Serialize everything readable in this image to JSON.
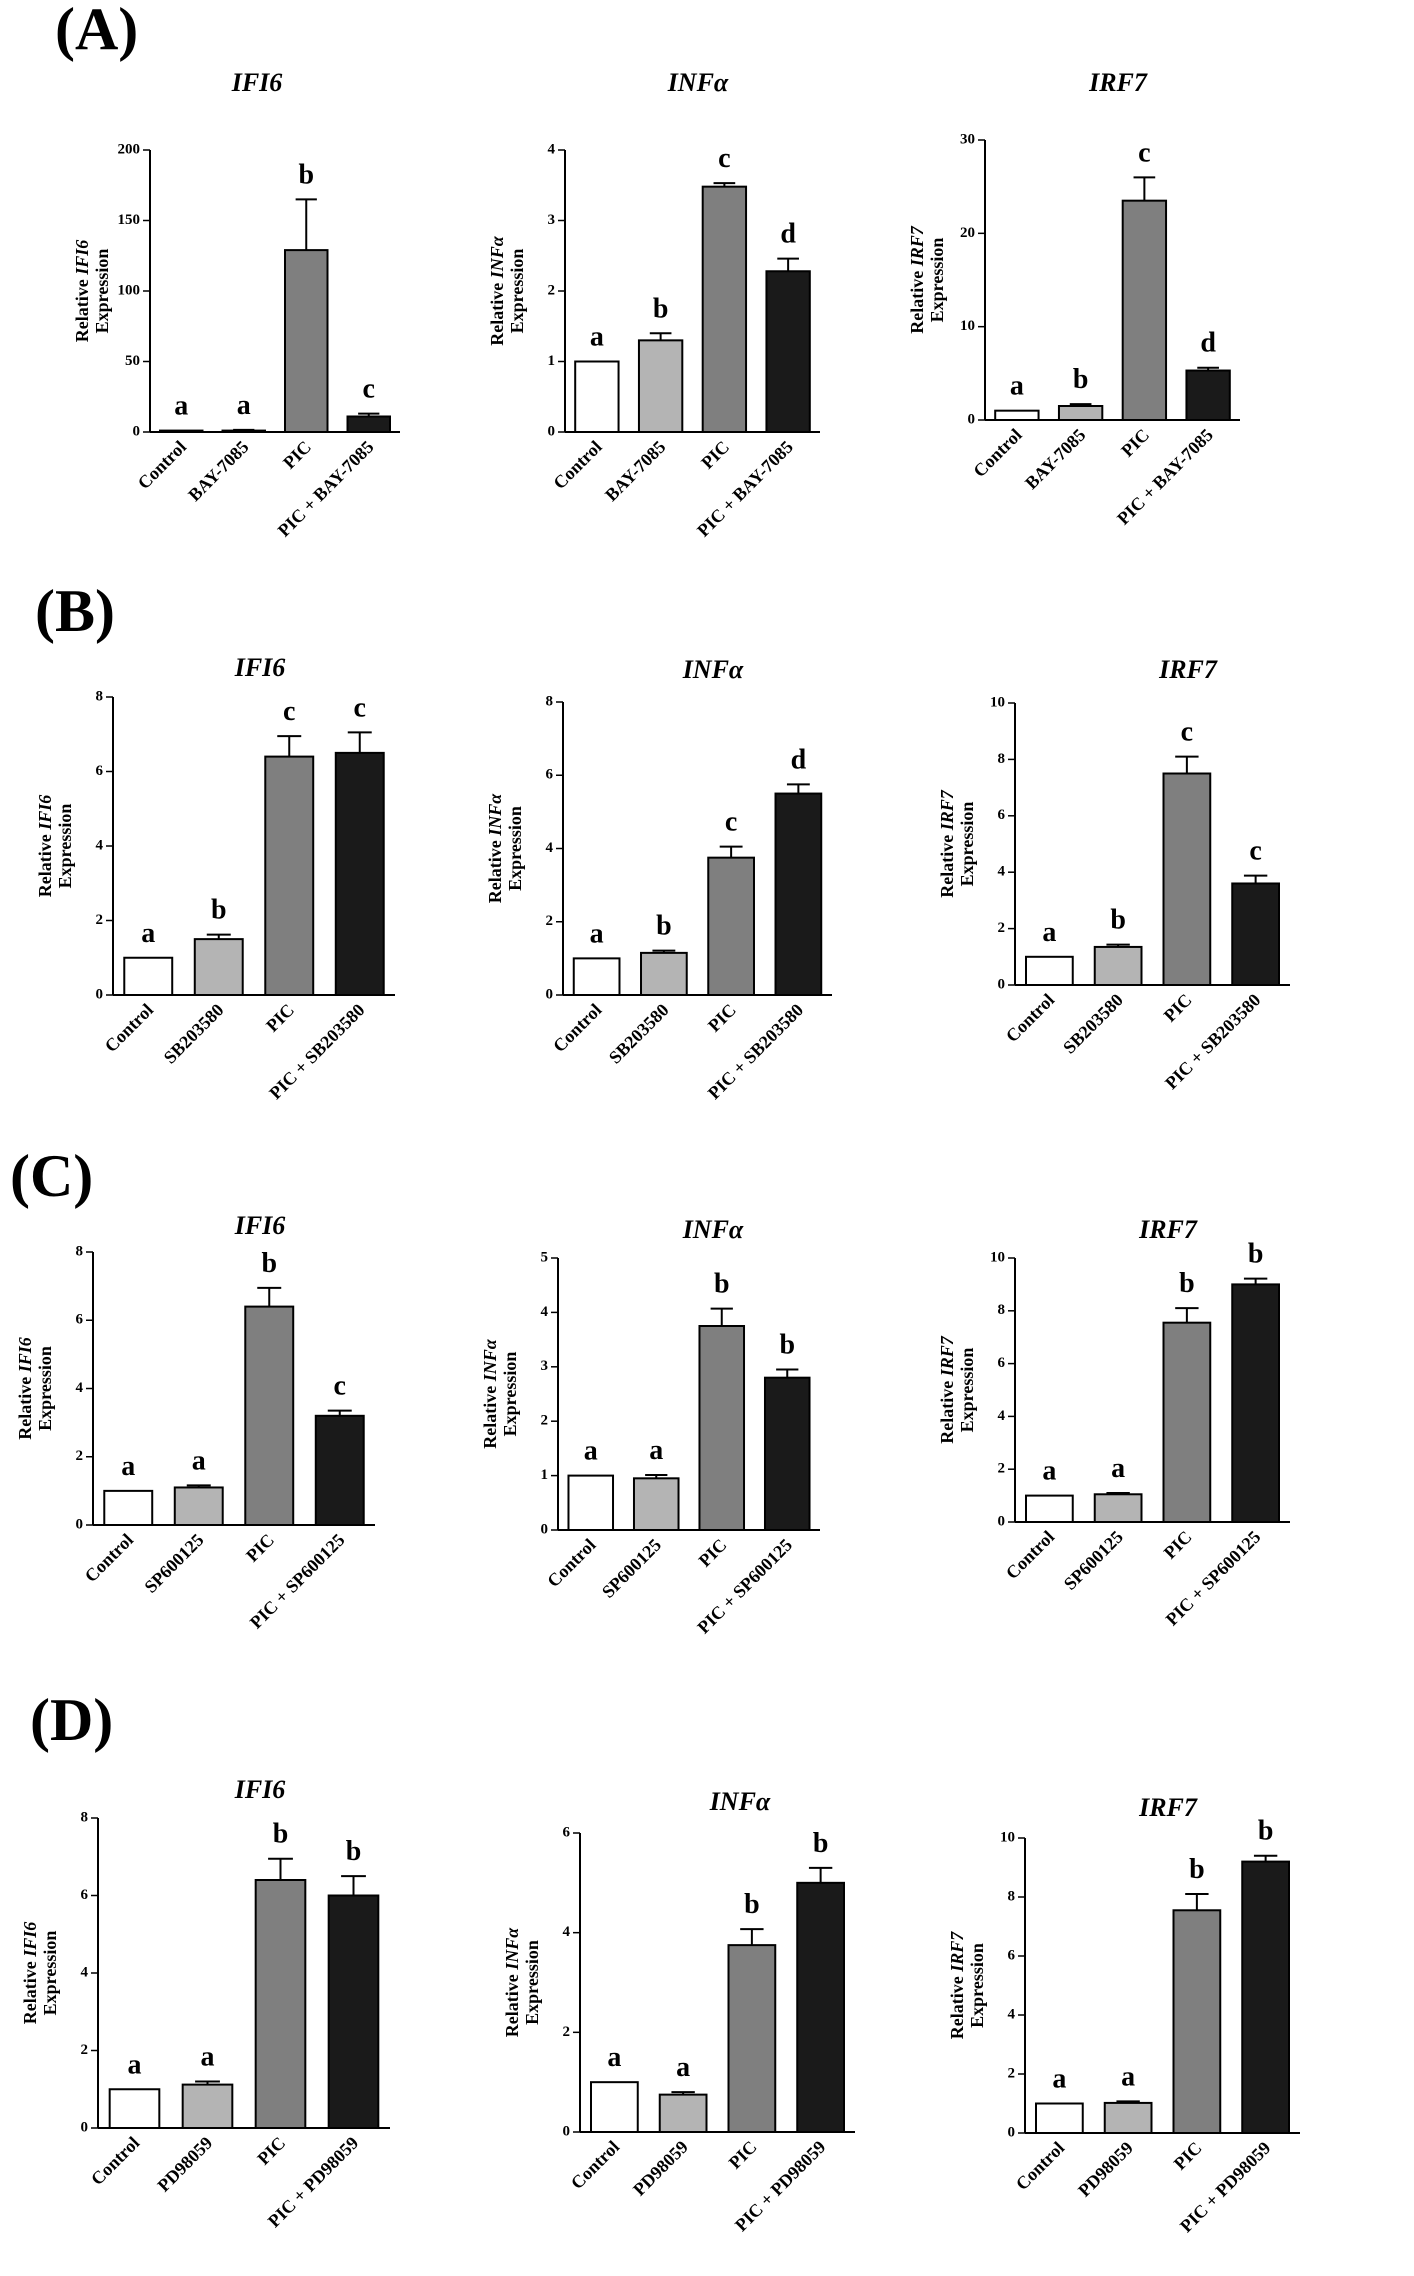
{
  "panels": [
    {
      "letter": "(A)",
      "charts": [
        {
          "type": "bar",
          "title": "IFI6",
          "ylabel_prefix": "Relative ",
          "ylabel_gene": "IFI6",
          "ylabel_suffix": "Expression",
          "categories": [
            "Control",
            "BAY-7085",
            "PIC",
            "PIC + BAY-7085"
          ],
          "values": [
            1,
            1,
            129,
            11
          ],
          "errors": [
            0,
            0.5,
            36,
            2
          ],
          "letters": [
            "a",
            "a",
            "b",
            "c"
          ],
          "yticks": [
            0,
            50,
            100,
            150,
            200
          ],
          "ylim": [
            0,
            200
          ]
        },
        {
          "type": "bar",
          "title": "INFα",
          "ylabel_prefix": "Relative ",
          "ylabel_gene": "INFα",
          "ylabel_suffix": "Expression",
          "categories": [
            "Control",
            "BAY-7085",
            "PIC",
            "PIC + BAY-7085"
          ],
          "values": [
            1,
            1.3,
            3.48,
            2.28
          ],
          "errors": [
            0,
            0.1,
            0.05,
            0.18
          ],
          "letters": [
            "a",
            "b",
            "c",
            "d"
          ],
          "yticks": [
            0,
            1,
            2,
            3,
            4
          ],
          "ylim": [
            0,
            4
          ]
        },
        {
          "type": "bar",
          "title": "IRF7",
          "ylabel_prefix": "Relative ",
          "ylabel_gene": "IRF7",
          "ylabel_suffix": "Expression",
          "categories": [
            "Control",
            "BAY-7085",
            "PIC",
            "PIC + BAY-7085"
          ],
          "values": [
            1,
            1.5,
            23.5,
            5.3
          ],
          "errors": [
            0,
            0.2,
            2.5,
            0.3
          ],
          "letters": [
            "a",
            "b",
            "c",
            "d"
          ],
          "yticks": [
            0,
            10,
            20,
            30
          ],
          "ylim": [
            0,
            30
          ]
        }
      ]
    },
    {
      "letter": "(B)",
      "charts": [
        {
          "type": "bar",
          "title": "IFI6",
          "ylabel_prefix": "Relative ",
          "ylabel_gene": "IFI6",
          "ylabel_suffix": "Expression",
          "categories": [
            "Control",
            "SB203580",
            "PIC",
            "PIC + SB203580"
          ],
          "values": [
            1,
            1.5,
            6.4,
            6.5
          ],
          "errors": [
            0,
            0.12,
            0.55,
            0.55
          ],
          "letters": [
            "a",
            "b",
            "c",
            "c"
          ],
          "yticks": [
            0,
            2,
            4,
            6,
            8
          ],
          "ylim": [
            0,
            8
          ]
        },
        {
          "type": "bar",
          "title": "INFα",
          "ylabel_prefix": "Relative ",
          "ylabel_gene": "INFα",
          "ylabel_suffix": "Expression",
          "categories": [
            "Control",
            "SB203580",
            "PIC",
            "PIC + SB203580"
          ],
          "values": [
            1,
            1.15,
            3.75,
            5.5
          ],
          "errors": [
            0,
            0.06,
            0.3,
            0.25
          ],
          "letters": [
            "a",
            "b",
            "c",
            "d"
          ],
          "yticks": [
            0,
            2,
            4,
            6,
            8
          ],
          "ylim": [
            0,
            8
          ]
        },
        {
          "type": "bar",
          "title": "IRF7",
          "ylabel_prefix": "Relative ",
          "ylabel_gene": "IRF7",
          "ylabel_suffix": "Expression",
          "categories": [
            "Control",
            "SB203580",
            "PIC",
            "PIC + SB203580"
          ],
          "values": [
            1,
            1.35,
            7.5,
            3.6
          ],
          "errors": [
            0,
            0.08,
            0.6,
            0.28
          ],
          "letters": [
            "a",
            "b",
            "c",
            "c"
          ],
          "yticks": [
            0,
            2,
            4,
            6,
            8,
            10
          ],
          "ylim": [
            0,
            10
          ]
        }
      ]
    },
    {
      "letter": "(C)",
      "charts": [
        {
          "type": "bar",
          "title": "IFI6",
          "ylabel_prefix": "Relative ",
          "ylabel_gene": "IFI6",
          "ylabel_suffix": "Expression",
          "categories": [
            "Control",
            "SP600125",
            "PIC",
            "PIC + SP600125"
          ],
          "values": [
            1,
            1.1,
            6.4,
            3.2
          ],
          "errors": [
            0,
            0.06,
            0.55,
            0.15
          ],
          "letters": [
            "a",
            "a",
            "b",
            "c"
          ],
          "yticks": [
            0,
            2,
            4,
            6,
            8
          ],
          "ylim": [
            0,
            8
          ]
        },
        {
          "type": "bar",
          "title": "INFα",
          "ylabel_prefix": "Relative ",
          "ylabel_gene": "INFα",
          "ylabel_suffix": "Expression",
          "categories": [
            "Control",
            "SP600125",
            "PIC",
            "PIC + SP600125"
          ],
          "values": [
            1,
            0.95,
            3.75,
            2.8
          ],
          "errors": [
            0,
            0.06,
            0.32,
            0.15
          ],
          "letters": [
            "a",
            "a",
            "b",
            "b"
          ],
          "yticks": [
            0,
            1,
            2,
            3,
            4,
            5
          ],
          "ylim": [
            0,
            5
          ]
        },
        {
          "type": "bar",
          "title": "IRF7",
          "ylabel_prefix": "Relative ",
          "ylabel_gene": "IRF7",
          "ylabel_suffix": "Expression",
          "categories": [
            "Control",
            "SP600125",
            "PIC",
            "PIC + SP600125"
          ],
          "values": [
            1,
            1.05,
            7.55,
            9.0
          ],
          "errors": [
            0,
            0.05,
            0.55,
            0.22
          ],
          "letters": [
            "a",
            "a",
            "b",
            "b"
          ],
          "yticks": [
            0,
            2,
            4,
            6,
            8,
            10
          ],
          "ylim": [
            0,
            10
          ]
        }
      ]
    },
    {
      "letter": "(D)",
      "charts": [
        {
          "type": "bar",
          "title": "IFI6",
          "ylabel_prefix": "Relative ",
          "ylabel_gene": "IFI6",
          "ylabel_suffix": "Expression",
          "categories": [
            "Control",
            "PD98059",
            "PIC",
            "PIC + PD98059"
          ],
          "values": [
            1,
            1.12,
            6.4,
            6.0
          ],
          "errors": [
            0,
            0.08,
            0.55,
            0.5
          ],
          "letters": [
            "a",
            "a",
            "b",
            "b"
          ],
          "yticks": [
            0,
            2,
            4,
            6,
            8
          ],
          "ylim": [
            0,
            8
          ]
        },
        {
          "type": "bar",
          "title": "INFα",
          "ylabel_prefix": "Relative ",
          "ylabel_gene": "INFα",
          "ylabel_suffix": "Expression",
          "categories": [
            "Control",
            "PD98059",
            "PIC",
            "PIC + PD98059"
          ],
          "values": [
            1,
            0.75,
            3.75,
            5.0
          ],
          "errors": [
            0,
            0.05,
            0.32,
            0.3
          ],
          "letters": [
            "a",
            "a",
            "b",
            "b"
          ],
          "yticks": [
            0,
            2,
            4,
            6
          ],
          "ylim": [
            0,
            6
          ]
        },
        {
          "type": "bar",
          "title": "IRF7",
          "ylabel_prefix": "Relative ",
          "ylabel_gene": "IRF7",
          "ylabel_suffix": "Expression",
          "categories": [
            "Control",
            "PD98059",
            "PIC",
            "PIC + PD98059"
          ],
          "values": [
            1,
            1.02,
            7.55,
            9.2
          ],
          "errors": [
            0,
            0.05,
            0.55,
            0.2
          ],
          "letters": [
            "a",
            "a",
            "b",
            "b"
          ],
          "yticks": [
            0,
            2,
            4,
            6,
            8,
            10
          ],
          "ylim": [
            0,
            10
          ]
        }
      ]
    }
  ],
  "bar_colors": [
    "#ffffff",
    "#b4b4b4",
    "#7f7f7f",
    "#1a1a1a"
  ],
  "chart_data": [
    {
      "type": "bar",
      "title": "IFI6",
      "categories": [
        "Control",
        "BAY-7085",
        "PIC",
        "PIC + BAY-7085"
      ],
      "values": [
        1,
        1,
        129,
        11
      ],
      "ylim": [
        0,
        200
      ]
    },
    {
      "type": "bar",
      "title": "INFα",
      "categories": [
        "Control",
        "BAY-7085",
        "PIC",
        "PIC + BAY-7085"
      ],
      "values": [
        1,
        1.3,
        3.48,
        2.28
      ],
      "ylim": [
        0,
        4
      ]
    },
    {
      "type": "bar",
      "title": "IRF7",
      "categories": [
        "Control",
        "BAY-7085",
        "PIC",
        "PIC + BAY-7085"
      ],
      "values": [
        1,
        1.5,
        23.5,
        5.3
      ],
      "ylim": [
        0,
        30
      ]
    },
    {
      "type": "bar",
      "title": "IFI6",
      "categories": [
        "Control",
        "SB203580",
        "PIC",
        "PIC + SB203580"
      ],
      "values": [
        1,
        1.5,
        6.4,
        6.5
      ],
      "ylim": [
        0,
        8
      ]
    },
    {
      "type": "bar",
      "title": "INFα",
      "categories": [
        "Control",
        "SB203580",
        "PIC",
        "PIC + SB203580"
      ],
      "values": [
        1,
        1.15,
        3.75,
        5.5
      ],
      "ylim": [
        0,
        8
      ]
    },
    {
      "type": "bar",
      "title": "IRF7",
      "categories": [
        "Control",
        "SB203580",
        "PIC",
        "PIC + SB203580"
      ],
      "values": [
        1,
        1.35,
        7.5,
        3.6
      ],
      "ylim": [
        0,
        10
      ]
    },
    {
      "type": "bar",
      "title": "IFI6",
      "categories": [
        "Control",
        "SP600125",
        "PIC",
        "PIC + SP600125"
      ],
      "values": [
        1,
        1.1,
        6.4,
        3.2
      ],
      "ylim": [
        0,
        8
      ]
    },
    {
      "type": "bar",
      "title": "INFα",
      "categories": [
        "Control",
        "SP600125",
        "PIC",
        "PIC + SP600125"
      ],
      "values": [
        1,
        0.95,
        3.75,
        2.8
      ],
      "ylim": [
        0,
        5
      ]
    },
    {
      "type": "bar",
      "title": "IRF7",
      "categories": [
        "Control",
        "SP600125",
        "PIC",
        "PIC + SP600125"
      ],
      "values": [
        1,
        1.05,
        7.55,
        9.0
      ],
      "ylim": [
        0,
        10
      ]
    },
    {
      "type": "bar",
      "title": "IFI6",
      "categories": [
        "Control",
        "PD98059",
        "PIC",
        "PIC + PD98059"
      ],
      "values": [
        1,
        1.12,
        6.4,
        6.0
      ],
      "ylim": [
        0,
        8
      ]
    },
    {
      "type": "bar",
      "title": "INFα",
      "categories": [
        "Control",
        "PD98059",
        "PIC",
        "PIC + PD98059"
      ],
      "values": [
        1,
        0.75,
        3.75,
        5.0
      ],
      "ylim": [
        0,
        6
      ]
    },
    {
      "type": "bar",
      "title": "IRF7",
      "categories": [
        "Control",
        "PD98059",
        "PIC",
        "PIC + PD98059"
      ],
      "values": [
        1,
        1.02,
        7.55,
        9.2
      ],
      "ylim": [
        0,
        10
      ]
    }
  ]
}
